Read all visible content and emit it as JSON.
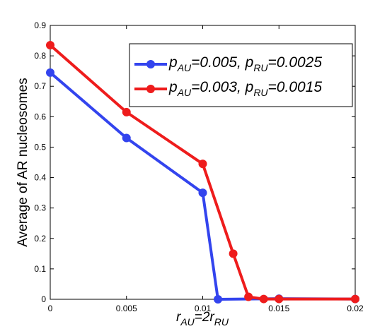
{
  "chart_data": {
    "type": "line",
    "title": "",
    "xlabel": "r_AU=2r_RU",
    "xlabel_parts": {
      "main1": "r",
      "sub1": "AU",
      "mid": "=2r",
      "sub2": "RU"
    },
    "ylabel": "Average of AR nucleosomes",
    "xlim": [
      0,
      0.02
    ],
    "ylim": [
      0,
      0.9
    ],
    "xticks": [
      0,
      0.005,
      0.01,
      0.015,
      0.02
    ],
    "xtick_labels": [
      "0",
      "0.005",
      "0.01",
      "0.015",
      "0.02"
    ],
    "yticks": [
      0,
      0.1,
      0.2,
      0.3,
      0.4,
      0.5,
      0.6,
      0.7,
      0.8,
      0.9
    ],
    "ytick_labels": [
      "0",
      "0.1",
      "0.2",
      "0.3",
      "0.4",
      "0.5",
      "0.6",
      "0.7",
      "0.8",
      "0.9"
    ],
    "grid": false,
    "legend_position": "top-right",
    "series": [
      {
        "name": "p_AU=0.005, p_RU=0.0025",
        "legend_parts": [
          "p",
          "AU",
          "=0.005, p",
          "RU",
          "=0.0025"
        ],
        "color": "#3344ee",
        "x": [
          0,
          0.005,
          0.01,
          0.011,
          0.015,
          0.02
        ],
        "y": [
          0.745,
          0.53,
          0.35,
          0.0,
          0.002,
          0.001
        ]
      },
      {
        "name": "p_AU=0.003, p_RU=0.0015",
        "legend_parts": [
          "p",
          "AU",
          "=0.003, p",
          "RU",
          "=0.0015"
        ],
        "color": "#ee1c1c",
        "x": [
          0,
          0.005,
          0.01,
          0.012,
          0.013,
          0.014,
          0.015,
          0.02
        ],
        "y": [
          0.835,
          0.615,
          0.445,
          0.15,
          0.008,
          0.001,
          0.001,
          0.001
        ]
      }
    ]
  }
}
